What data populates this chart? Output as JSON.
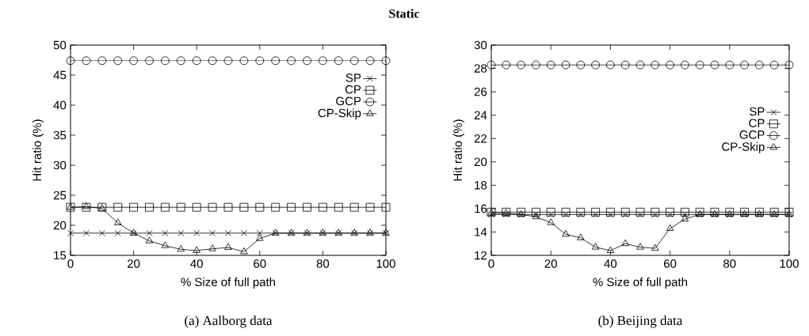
{
  "chart_data": [
    {
      "type": "line",
      "title": "Static",
      "xlabel": "% Size of full path",
      "ylabel": "Hit ratio (%)",
      "annotations": [
        "(a) Aalborg data"
      ],
      "x": [
        0,
        5,
        10,
        15,
        20,
        25,
        30,
        35,
        40,
        45,
        50,
        55,
        60,
        65,
        70,
        75,
        80,
        85,
        90,
        95,
        100
      ],
      "xlim": [
        0,
        100
      ],
      "xticks": [
        0,
        20,
        40,
        60,
        80,
        100
      ],
      "ylim": [
        15,
        50
      ],
      "yticks": [
        15,
        20,
        25,
        30,
        35,
        40,
        45,
        50
      ],
      "grid": false,
      "legend": "top right",
      "series": [
        {
          "name": "SP",
          "color": "#000000",
          "marker": "cross",
          "values": [
            18.7,
            18.7,
            18.7,
            18.7,
            18.7,
            18.7,
            18.7,
            18.7,
            18.7,
            18.7,
            18.7,
            18.7,
            18.7,
            18.7,
            18.7,
            18.7,
            18.7,
            18.7,
            18.7,
            18.7,
            18.7
          ]
        },
        {
          "name": "CP",
          "color": "#000000",
          "marker": "square",
          "values": [
            23,
            23,
            23,
            23,
            23,
            23,
            23,
            23,
            23,
            23,
            23,
            23,
            23,
            23,
            23,
            23,
            23,
            23,
            23,
            23,
            23
          ]
        },
        {
          "name": "GCP",
          "color": "#000000",
          "marker": "circle",
          "values": [
            47.4,
            47.4,
            47.4,
            47.4,
            47.4,
            47.4,
            47.4,
            47.4,
            47.4,
            47.4,
            47.4,
            47.4,
            47.4,
            47.4,
            47.4,
            47.4,
            47.4,
            47.4,
            47.4,
            47.4,
            47.4
          ]
        },
        {
          "name": "CP-Skip",
          "color": "#000000",
          "marker": "triangle",
          "values": [
            23,
            23.1,
            22.8,
            20.4,
            18.7,
            17.4,
            16.6,
            16.0,
            15.8,
            16.1,
            16.3,
            15.6,
            17.8,
            18.7,
            18.7,
            18.7,
            18.7,
            18.7,
            18.7,
            18.7,
            18.7
          ]
        }
      ]
    },
    {
      "type": "line",
      "xlabel": "% Size of full path",
      "ylabel": "Hit ratio (%)",
      "annotations": [
        "(b) Beijing data"
      ],
      "x": [
        0,
        5,
        10,
        15,
        20,
        25,
        30,
        35,
        40,
        45,
        50,
        55,
        60,
        65,
        70,
        75,
        80,
        85,
        90,
        95,
        100
      ],
      "xlim": [
        0,
        100
      ],
      "xticks": [
        0,
        20,
        40,
        60,
        80,
        100
      ],
      "ylim": [
        12,
        30
      ],
      "yticks": [
        12,
        14,
        16,
        18,
        20,
        22,
        24,
        26,
        28,
        30
      ],
      "grid": false,
      "legend": "right",
      "series": [
        {
          "name": "SP",
          "color": "#000000",
          "marker": "cross",
          "values": [
            15.5,
            15.5,
            15.5,
            15.5,
            15.5,
            15.5,
            15.5,
            15.5,
            15.5,
            15.5,
            15.5,
            15.5,
            15.5,
            15.5,
            15.5,
            15.5,
            15.5,
            15.5,
            15.5,
            15.5,
            15.5
          ]
        },
        {
          "name": "CP",
          "color": "#000000",
          "marker": "square",
          "values": [
            15.7,
            15.7,
            15.7,
            15.7,
            15.7,
            15.7,
            15.7,
            15.7,
            15.7,
            15.7,
            15.7,
            15.7,
            15.7,
            15.7,
            15.7,
            15.7,
            15.7,
            15.7,
            15.7,
            15.7,
            15.7
          ]
        },
        {
          "name": "GCP",
          "color": "#000000",
          "marker": "circle",
          "values": [
            28.3,
            28.3,
            28.3,
            28.3,
            28.3,
            28.3,
            28.3,
            28.3,
            28.3,
            28.3,
            28.3,
            28.3,
            28.3,
            28.3,
            28.3,
            28.3,
            28.3,
            28.3,
            28.3,
            28.3,
            28.3
          ]
        },
        {
          "name": "CP-Skip",
          "color": "#000000",
          "marker": "triangle",
          "values": [
            15.6,
            15.6,
            15.5,
            15.3,
            14.8,
            13.8,
            13.5,
            12.7,
            12.4,
            13.0,
            12.7,
            12.6,
            14.3,
            15.1,
            15.5,
            15.5,
            15.5,
            15.5,
            15.5,
            15.5,
            15.5
          ]
        }
      ]
    }
  ]
}
